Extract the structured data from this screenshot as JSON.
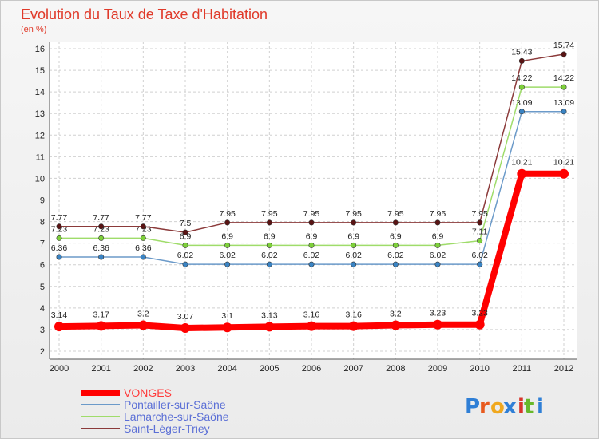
{
  "chart_data": {
    "type": "line",
    "title": "Evolution du Taux de Taxe d'Habitation",
    "subtitle": "(en %)",
    "x": [
      "2000",
      "2001",
      "2002",
      "2003",
      "2004",
      "2005",
      "2006",
      "2007",
      "2008",
      "2009",
      "2010",
      "2011",
      "2012"
    ],
    "ylim": [
      2,
      16
    ],
    "yticks": [
      "2",
      "3",
      "4",
      "5",
      "6",
      "7",
      "8",
      "9",
      "10",
      "11",
      "12",
      "13",
      "14",
      "15",
      "16"
    ],
    "grid": true,
    "legend_position": "bottom-left",
    "series": [
      {
        "name": "VONGES",
        "color": "#ff0000",
        "values": [
          3.14,
          3.17,
          3.2,
          3.07,
          3.1,
          3.13,
          3.16,
          3.16,
          3.2,
          3.23,
          3.23,
          10.21,
          10.21
        ],
        "labels": [
          "3.14",
          "3.17",
          "3.2",
          "3.07",
          "3.1",
          "3.13",
          "3.16",
          "3.16",
          "3.2",
          "3.23",
          "3.23",
          "10.21",
          "10.21"
        ]
      },
      {
        "name": "Pontailler-sur-Saône",
        "color": "#6b9ac9",
        "values": [
          6.36,
          6.36,
          6.36,
          6.02,
          6.02,
          6.02,
          6.02,
          6.02,
          6.02,
          6.02,
          6.02,
          13.09,
          13.09
        ],
        "labels": [
          "6.36",
          "6.36",
          "6.36",
          "6.02",
          "6.02",
          "6.02",
          "6.02",
          "6.02",
          "6.02",
          "6.02",
          "6.02",
          "13.09",
          "13.09"
        ]
      },
      {
        "name": "Lamarche-sur-Saône",
        "color": "#9fdc6a",
        "values": [
          7.23,
          7.23,
          7.23,
          6.9,
          6.9,
          6.9,
          6.9,
          6.9,
          6.9,
          6.9,
          7.11,
          14.22,
          14.22
        ],
        "labels": [
          "7.23",
          "7.23",
          "7.23",
          "6.9",
          "6.9",
          "6.9",
          "6.9",
          "6.9",
          "6.9",
          "6.9",
          "7.11",
          "14.22",
          "14.22"
        ]
      },
      {
        "name": "Saint-Léger-Triey",
        "color": "#8b3a3a",
        "values": [
          7.77,
          7.77,
          7.77,
          7.5,
          7.95,
          7.95,
          7.95,
          7.95,
          7.95,
          7.95,
          7.95,
          15.43,
          15.74
        ],
        "labels": [
          "7.77",
          "7.77",
          "7.77",
          "7.5",
          "7.95",
          "7.95",
          "7.95",
          "7.95",
          "7.95",
          "7.95",
          "7.95",
          "15.43",
          "15.74"
        ]
      }
    ]
  },
  "brand": {
    "letters": [
      "P",
      "r",
      "o",
      "x",
      "i",
      "t",
      "i"
    ]
  }
}
